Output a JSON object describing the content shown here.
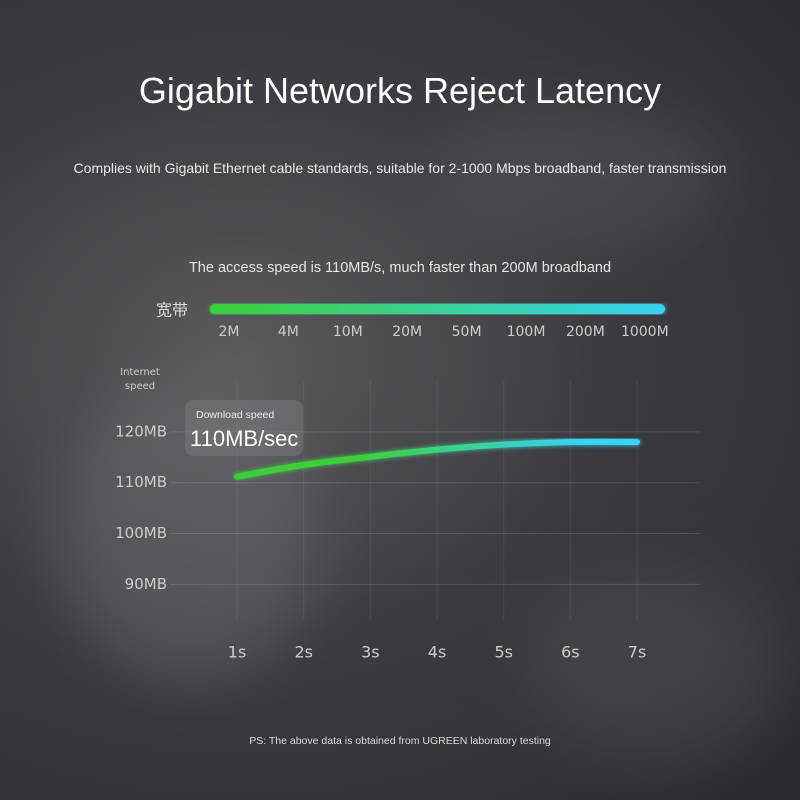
{
  "title": "Gigabit Networks Reject Latency",
  "subtitle": "Complies with Gigabit Ethernet cable standards, suitable for 2-1000 Mbps broadband, faster transmission",
  "speed_bar": {
    "caption": "The access speed is 110MB/s, much faster than 200M broadband",
    "label": "宽带",
    "ticks": [
      "2M",
      "4M",
      "10M",
      "20M",
      "50M",
      "100M",
      "200M",
      "1000M"
    ],
    "colors": [
      "#3ccf3a",
      "#38d2f2"
    ]
  },
  "chart_data": {
    "type": "line",
    "y_label": "Internet speed",
    "categories": [
      "1s",
      "2s",
      "3s",
      "4s",
      "5s",
      "6s",
      "7s"
    ],
    "series": [
      {
        "colors": [
          "#3ccf3a",
          "#38d2f2"
        ],
        "values": [
          111.2,
          113.5,
          115.1,
          116.5,
          117.5,
          118,
          118
        ]
      }
    ],
    "ylim": [
      83,
      130
    ],
    "yticks": [
      {
        "value": 90,
        "label": "90MB"
      },
      {
        "value": 100,
        "label": "100MB"
      },
      {
        "value": 110,
        "label": "110MB"
      },
      {
        "value": 120,
        "label": "120MB"
      }
    ],
    "grid": true,
    "annotation": {
      "title": "Download speed",
      "text": "110MB/sec"
    }
  },
  "footnote": "PS: The above data is obtained from UGREEN laboratory testing"
}
